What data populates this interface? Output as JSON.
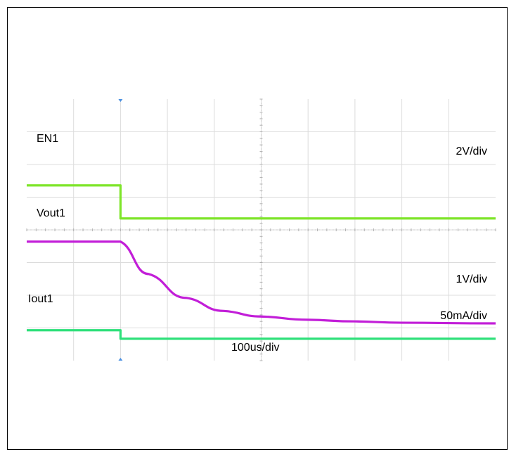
{
  "chart_data": {
    "type": "line",
    "title": "",
    "x_unit": "us",
    "x": {
      "divisions": 10,
      "per_div_label": "100us/div"
    },
    "y": {
      "divisions": 8
    },
    "grid": true,
    "series": [
      {
        "name": "EN1",
        "scale_label": "2V/div",
        "color": "#7ee52a",
        "points": [
          [
            0,
            5.36
          ],
          [
            200,
            5.36
          ],
          [
            200,
            4.35
          ],
          [
            1000,
            4.35
          ]
        ]
      },
      {
        "name": "Vout1",
        "scale_label": "1V/div",
        "color": "#c21ed8",
        "points": [
          [
            0,
            3.64
          ],
          [
            200,
            3.64
          ],
          [
            260,
            2.65
          ],
          [
            340,
            1.92
          ],
          [
            420,
            1.52
          ],
          [
            500,
            1.35
          ],
          [
            600,
            1.25
          ],
          [
            700,
            1.2
          ],
          [
            800,
            1.16
          ],
          [
            1000,
            1.14
          ]
        ]
      },
      {
        "name": "Iout1",
        "scale_label": "50mA/div",
        "color": "#2ee07a",
        "points": [
          [
            0,
            0.93
          ],
          [
            200,
            0.93
          ],
          [
            200,
            0.67
          ],
          [
            1000,
            0.67
          ]
        ]
      }
    ]
  }
}
